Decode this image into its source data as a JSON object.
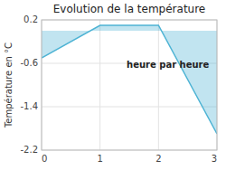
{
  "chart_data": {
    "type": "area",
    "title": "Evolution de la température",
    "x_label": "heure par heure",
    "y_label": "Température en °C",
    "x": [
      0,
      1,
      2,
      3
    ],
    "values": [
      -0.5,
      0.1,
      0.1,
      -1.9
    ],
    "baseline": 0.0,
    "color": "#4db3d4",
    "xlim": [
      0,
      3
    ],
    "ylim": [
      -2.2,
      0.2
    ],
    "xticks": [
      0,
      1,
      2,
      3
    ],
    "yticks": [
      0.2,
      -0.6,
      -1.4,
      -2.2
    ],
    "grid": true
  }
}
